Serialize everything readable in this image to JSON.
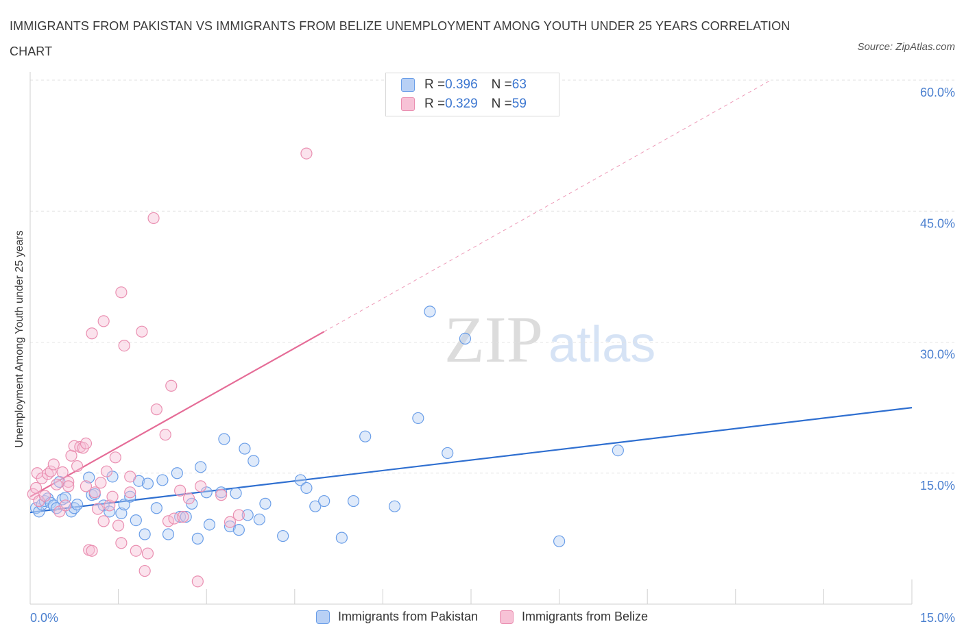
{
  "chart_data": {
    "type": "scatter",
    "title": "IMMIGRANTS FROM PAKISTAN VS IMMIGRANTS FROM BELIZE UNEMPLOYMENT AMONG YOUTH UNDER 25 YEARS CORRELATION CHART",
    "source": "Source: ZipAtlas.com",
    "xlabel": "",
    "ylabel": "Unemployment Among Youth under 25 years",
    "xlim": [
      0,
      15
    ],
    "ylim": [
      0,
      60
    ],
    "x_tick_labels": [
      "0.0%",
      "15.0%"
    ],
    "y_ticks": [
      15,
      30,
      45,
      60
    ],
    "y_tick_labels": [
      "15.0%",
      "30.0%",
      "45.0%",
      "60.0%"
    ],
    "grid": true,
    "watermark": "ZIPatlas",
    "legend": [
      {
        "r_label": "R = ",
        "r_value": "0.396",
        "n_label": "N = ",
        "n_value": "63"
      },
      {
        "r_label": "R = ",
        "r_value": "0.329",
        "n_label": "N = ",
        "n_value": "59"
      }
    ],
    "series": [
      {
        "name": "Immigrants from Pakistan",
        "color": "#6a9ee8",
        "fill": "#b8d0f5",
        "line_color": "#2f6fd0",
        "trend": {
          "x": [
            0.0,
            15.0
          ],
          "y": [
            10.5,
            22.5
          ],
          "dashed_until": null
        },
        "points": [
          [
            0.1,
            11.0
          ],
          [
            0.15,
            10.6
          ],
          [
            0.2,
            11.4
          ],
          [
            0.25,
            11.8
          ],
          [
            0.3,
            12.1
          ],
          [
            0.35,
            11.6
          ],
          [
            0.4,
            11.3
          ],
          [
            0.45,
            11.0
          ],
          [
            0.5,
            14.0
          ],
          [
            0.55,
            12.0
          ],
          [
            0.6,
            12.2
          ],
          [
            0.7,
            10.6
          ],
          [
            0.75,
            11.0
          ],
          [
            0.8,
            11.4
          ],
          [
            1.0,
            14.5
          ],
          [
            1.05,
            12.5
          ],
          [
            1.1,
            12.6
          ],
          [
            1.25,
            11.3
          ],
          [
            1.35,
            10.6
          ],
          [
            1.4,
            14.6
          ],
          [
            1.55,
            10.4
          ],
          [
            1.6,
            11.4
          ],
          [
            1.7,
            12.3
          ],
          [
            1.8,
            9.6
          ],
          [
            1.85,
            14.1
          ],
          [
            1.95,
            8.0
          ],
          [
            2.0,
            13.8
          ],
          [
            2.15,
            11.0
          ],
          [
            2.25,
            14.2
          ],
          [
            2.35,
            8.0
          ],
          [
            2.5,
            15.0
          ],
          [
            2.55,
            10.0
          ],
          [
            2.65,
            10.0
          ],
          [
            2.75,
            11.5
          ],
          [
            2.85,
            7.5
          ],
          [
            2.9,
            15.7
          ],
          [
            3.0,
            12.8
          ],
          [
            3.05,
            9.1
          ],
          [
            3.25,
            12.8
          ],
          [
            3.3,
            18.9
          ],
          [
            3.4,
            8.9
          ],
          [
            3.5,
            12.7
          ],
          [
            3.55,
            8.5
          ],
          [
            3.65,
            17.8
          ],
          [
            3.7,
            10.2
          ],
          [
            3.8,
            16.4
          ],
          [
            3.9,
            9.7
          ],
          [
            4.0,
            11.5
          ],
          [
            4.3,
            7.8
          ],
          [
            4.6,
            14.2
          ],
          [
            4.7,
            13.3
          ],
          [
            4.85,
            11.2
          ],
          [
            5.0,
            11.8
          ],
          [
            5.3,
            7.6
          ],
          [
            5.5,
            11.8
          ],
          [
            5.7,
            19.2
          ],
          [
            6.2,
            11.2
          ],
          [
            6.6,
            21.3
          ],
          [
            6.8,
            33.5
          ],
          [
            7.1,
            17.3
          ],
          [
            7.4,
            30.4
          ],
          [
            9.0,
            7.2
          ],
          [
            10.0,
            17.6
          ]
        ]
      },
      {
        "name": "Immigrants from Belize",
        "color": "#ea8fb1",
        "fill": "#f7c2d6",
        "line_color": "#e56c97",
        "trend": {
          "x": [
            0.0,
            5.0,
            12.6
          ],
          "y": [
            12.3,
            31.2,
            60.0
          ],
          "dashed_from_index": 1
        },
        "points": [
          [
            0.05,
            12.6
          ],
          [
            0.1,
            13.3
          ],
          [
            0.12,
            15.0
          ],
          [
            0.15,
            11.8
          ],
          [
            0.2,
            14.4
          ],
          [
            0.25,
            12.4
          ],
          [
            0.3,
            14.9
          ],
          [
            0.35,
            15.2
          ],
          [
            0.4,
            16.0
          ],
          [
            0.45,
            13.7
          ],
          [
            0.5,
            10.6
          ],
          [
            0.55,
            15.1
          ],
          [
            0.6,
            11.3
          ],
          [
            0.65,
            14.0
          ],
          [
            0.7,
            17.0
          ],
          [
            0.75,
            18.1
          ],
          [
            0.8,
            15.8
          ],
          [
            0.85,
            18.0
          ],
          [
            0.9,
            17.9
          ],
          [
            0.95,
            13.5
          ],
          [
            0.65,
            13.5
          ],
          [
            0.95,
            18.4
          ],
          [
            1.0,
            6.2
          ],
          [
            1.05,
            6.1
          ],
          [
            1.1,
            12.8
          ],
          [
            1.15,
            10.9
          ],
          [
            1.2,
            13.9
          ],
          [
            1.25,
            9.5
          ],
          [
            1.3,
            15.2
          ],
          [
            1.35,
            11.3
          ],
          [
            1.4,
            12.3
          ],
          [
            1.45,
            16.8
          ],
          [
            1.5,
            9.0
          ],
          [
            1.55,
            7.0
          ],
          [
            1.05,
            31.0
          ],
          [
            1.25,
            32.4
          ],
          [
            1.55,
            35.7
          ],
          [
            1.6,
            29.6
          ],
          [
            1.7,
            14.6
          ],
          [
            1.7,
            12.8
          ],
          [
            1.8,
            6.1
          ],
          [
            1.9,
            31.2
          ],
          [
            1.95,
            3.8
          ],
          [
            2.0,
            5.8
          ],
          [
            2.1,
            44.2
          ],
          [
            2.15,
            22.3
          ],
          [
            2.3,
            19.4
          ],
          [
            2.35,
            9.5
          ],
          [
            2.4,
            25.0
          ],
          [
            2.45,
            9.8
          ],
          [
            2.55,
            13.0
          ],
          [
            2.6,
            10.0
          ],
          [
            2.7,
            12.1
          ],
          [
            2.85,
            2.6
          ],
          [
            2.9,
            13.5
          ],
          [
            3.25,
            12.5
          ],
          [
            3.4,
            9.4
          ],
          [
            3.55,
            10.2
          ],
          [
            4.7,
            51.6
          ]
        ]
      }
    ]
  }
}
